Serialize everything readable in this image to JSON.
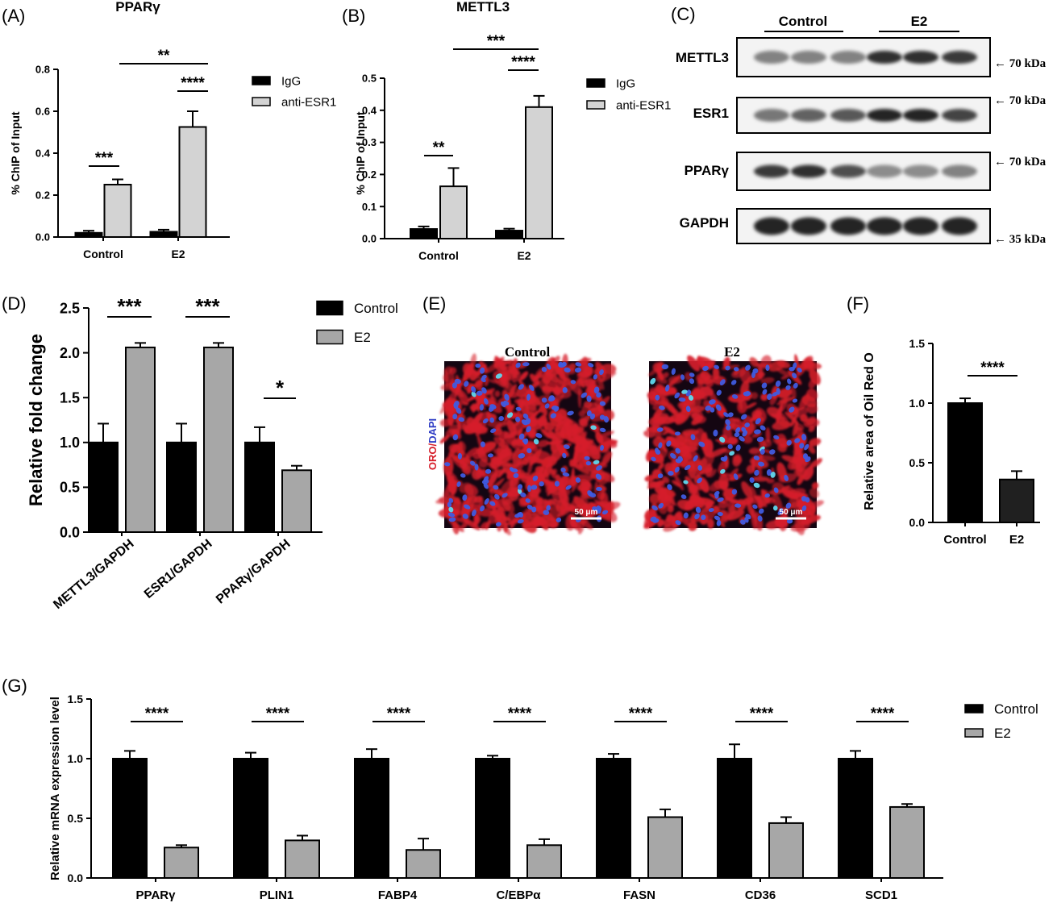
{
  "panels": {
    "A": {
      "letter": "(A)"
    },
    "B": {
      "letter": "(B)"
    },
    "C": {
      "letter": "(C)"
    },
    "D": {
      "letter": "(D)"
    },
    "E": {
      "letter": "(E)"
    },
    "F": {
      "letter": "(F)"
    },
    "G": {
      "letter": "(G)"
    }
  },
  "colors": {
    "black_bar": "#000000",
    "light_gray_bar": "#d3d3d3",
    "mid_gray_bar": "#a7a7a7",
    "dark_bar": "#202020",
    "oro_red": "#d61e2a",
    "dapi_blue": "#2e3cc4"
  },
  "chart_data": [
    {
      "id": "A",
      "type": "bar",
      "title": "PPARγ",
      "xlabel": "",
      "ylabel": "% ChIP of Input",
      "categories": [
        "Control",
        "E2"
      ],
      "ylim": [
        0,
        0.8
      ],
      "yticks": [
        "0.0",
        "0.2",
        "0.4",
        "0.6",
        "0.8"
      ],
      "series": [
        {
          "name": "IgG",
          "values": [
            0.02,
            0.025
          ],
          "errors": [
            0.01,
            0.01
          ]
        },
        {
          "name": "anti-ESR1",
          "values": [
            0.25,
            0.525
          ],
          "errors": [
            0.025,
            0.075
          ]
        }
      ],
      "significance": [
        "***",
        "****",
        "**"
      ],
      "legend": "right"
    },
    {
      "id": "B",
      "type": "bar",
      "title": "METTL3",
      "xlabel": "",
      "ylabel": "% ChIP of Input",
      "categories": [
        "Control",
        "E2"
      ],
      "ylim": [
        0,
        0.5
      ],
      "yticks": [
        "0.0",
        "0.1",
        "0.2",
        "0.3",
        "0.4",
        "0.5"
      ],
      "series": [
        {
          "name": "IgG",
          "values": [
            0.03,
            0.025
          ],
          "errors": [
            0.008,
            0.006
          ]
        },
        {
          "name": "anti-ESR1",
          "values": [
            0.163,
            0.41
          ],
          "errors": [
            0.057,
            0.035
          ]
        }
      ],
      "significance": [
        "**",
        "****",
        "***"
      ],
      "legend": "right"
    },
    {
      "id": "D",
      "type": "bar",
      "title": "",
      "xlabel": "",
      "ylabel": "Relative fold change",
      "categories": [
        "METTL3/GAPDH",
        "ESR1/GAPDH",
        "PPARγ/GAPDH"
      ],
      "ylim": [
        0,
        2.5
      ],
      "yticks": [
        "0.0",
        "0.5",
        "1.0",
        "1.5",
        "2.0",
        "2.5"
      ],
      "series": [
        {
          "name": "Control",
          "values": [
            1.0,
            1.0,
            1.0
          ],
          "errors": [
            0.21,
            0.21,
            0.17
          ]
        },
        {
          "name": "E2",
          "values": [
            2.06,
            2.06,
            0.69
          ],
          "errors": [
            0.05,
            0.05,
            0.05
          ]
        }
      ],
      "significance": [
        "***",
        "***",
        "*"
      ],
      "legend": "top-right"
    },
    {
      "id": "F",
      "type": "bar",
      "title": "",
      "xlabel": "",
      "ylabel": "Relative area of Oil Red O",
      "categories": [
        "Control",
        "E2"
      ],
      "ylim": [
        0,
        1.5
      ],
      "yticks": [
        "0.0",
        "0.5",
        "1.0",
        "1.5"
      ],
      "series": [
        {
          "values": [
            1.0,
            0.36
          ],
          "errors": [
            0.04,
            0.07
          ]
        }
      ],
      "significance": [
        "****"
      ],
      "legend": "none"
    },
    {
      "id": "G",
      "type": "bar",
      "title": "",
      "xlabel": "",
      "ylabel": "Relative mRNA expression level",
      "categories": [
        "PPARγ",
        "PLIN1",
        "FABP4",
        "C/EBPα",
        "FASN",
        "CD36",
        "SCD1"
      ],
      "ylim": [
        0,
        1.5
      ],
      "yticks": [
        "0.0",
        "0.5",
        "1.0",
        "1.5"
      ],
      "series": [
        {
          "name": "Control",
          "values": [
            1.0,
            1.0,
            1.0,
            1.0,
            1.0,
            1.0,
            1.0
          ],
          "errors": [
            0.065,
            0.05,
            0.08,
            0.025,
            0.04,
            0.12,
            0.065
          ]
        },
        {
          "name": "E2",
          "values": [
            0.255,
            0.315,
            0.235,
            0.275,
            0.51,
            0.46,
            0.595
          ],
          "errors": [
            0.02,
            0.04,
            0.095,
            0.05,
            0.065,
            0.05,
            0.025
          ]
        }
      ],
      "significance": [
        "****",
        "****",
        "****",
        "****",
        "****",
        "****",
        "****"
      ],
      "legend": "top-right"
    }
  ],
  "western_blot": {
    "groups": [
      "Control",
      "E2"
    ],
    "rows": [
      {
        "label": "METTL3",
        "marker": "← 70 kDa"
      },
      {
        "label": "ESR1",
        "marker": "← 70 kDa"
      },
      {
        "label": "PPARγ",
        "marker": "← 70 kDa"
      },
      {
        "label": "GAPDH",
        "marker": "← 35 kDa"
      }
    ]
  },
  "oro_images": {
    "titles": [
      "Control",
      "E2"
    ],
    "stain_label_red": "ORO",
    "stain_label_sep": "/",
    "stain_label_blue": "DAPI",
    "scale_bar": "50 μm"
  }
}
